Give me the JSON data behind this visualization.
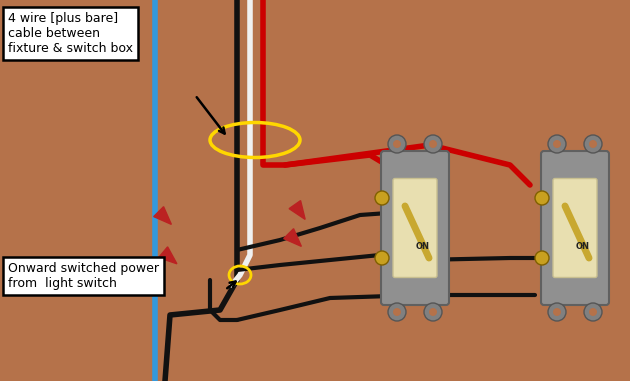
{
  "bg_color": "#B5724A",
  "fig_width": 6.3,
  "fig_height": 3.81,
  "dpi": 100,
  "label1_text": "4 wire [plus bare]\ncable between\nfixture & switch box",
  "label2_text": "Onward switched power\nfrom  light switch",
  "wire_red_color": "#CC0000",
  "wire_black_color": "#111111",
  "wire_white_color": "#F0F0F0",
  "wire_blue_color": "#3399DD",
  "wire_yellow_color": "#FFD700",
  "connector_color": "#BB2222",
  "switch_body_color": "#909090",
  "switch_face_color": "#E8DFB0",
  "screw_color": "#C8A020",
  "switch_tab_color": "#808080"
}
